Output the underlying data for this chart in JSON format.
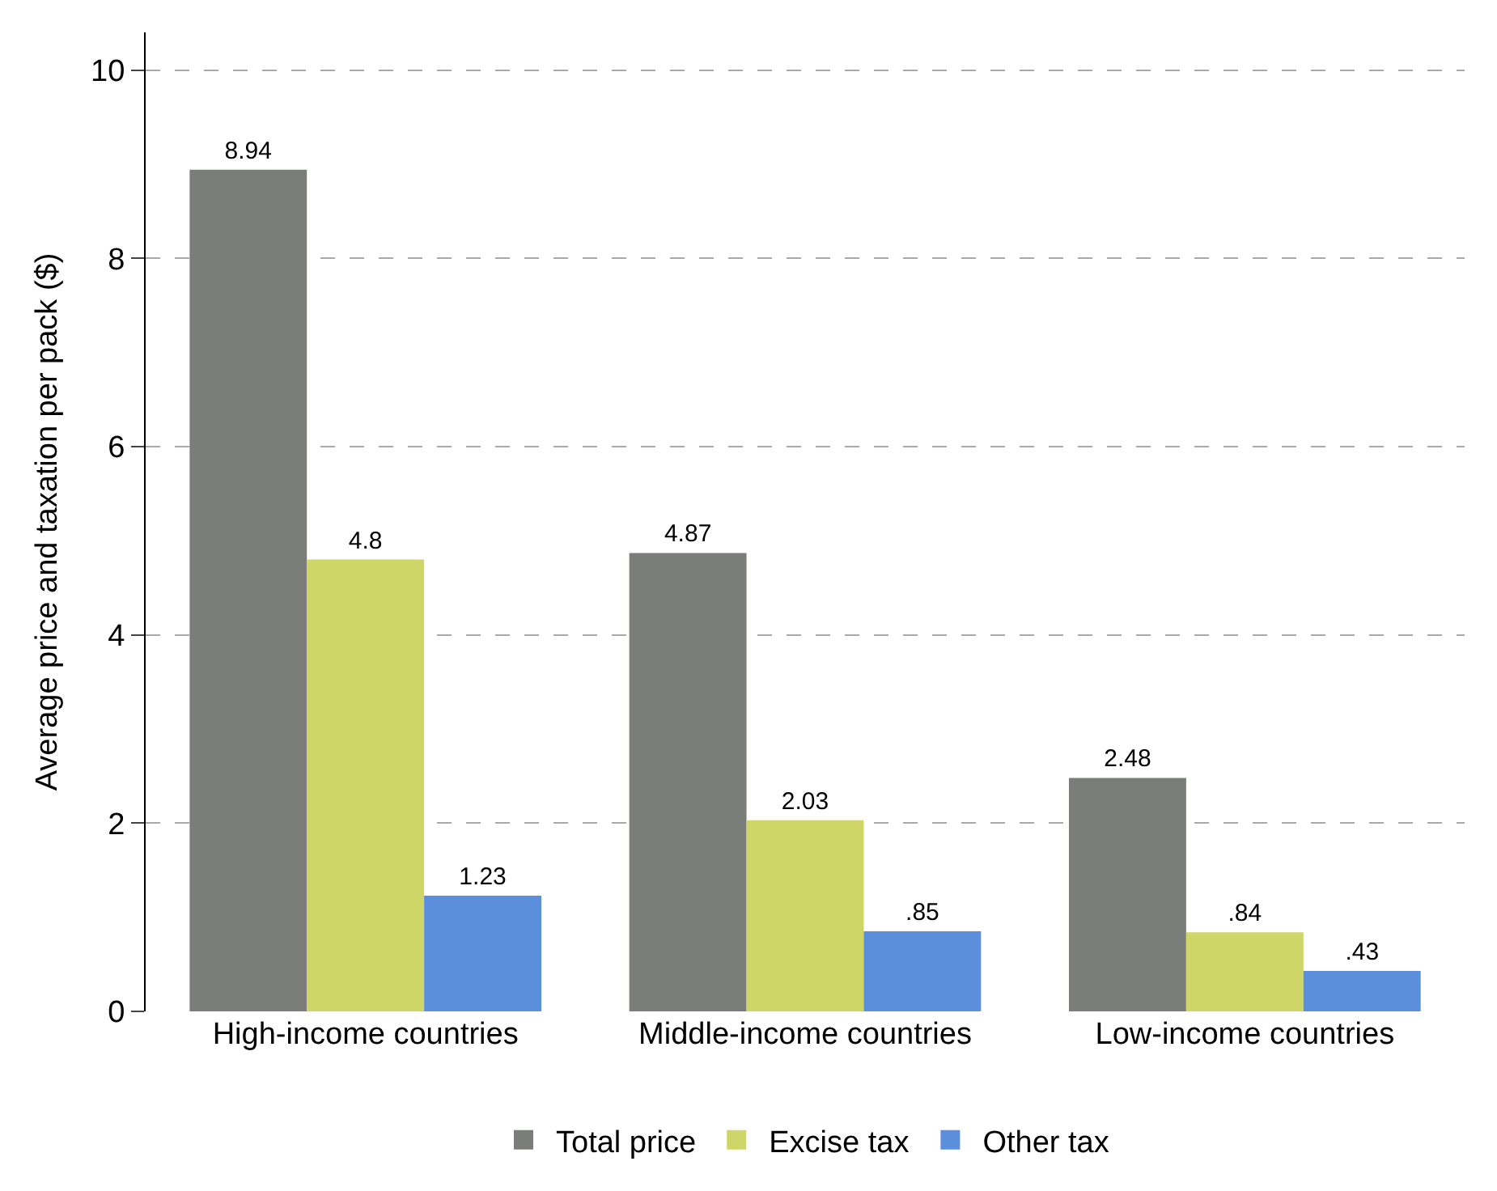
{
  "chart_data": {
    "type": "bar",
    "ylabel": "Average price and taxation per pack ($)",
    "categories": [
      "High-income countries",
      "Middle-income countries",
      "Low-income countries"
    ],
    "series": [
      {
        "name": "Total price",
        "color": "#7b7d7b",
        "values": [
          8.94,
          4.87,
          2.48
        ],
        "value_labels": [
          "8.94",
          "4.87",
          "2.48"
        ]
      },
      {
        "name": "Excise tax",
        "color": "#cdd667",
        "values": [
          4.8,
          2.03,
          0.84
        ],
        "value_labels": [
          "4.8",
          "2.03",
          ".84"
        ]
      },
      {
        "name": "Other tax",
        "color": "#5b8edb",
        "values": [
          1.23,
          0.85,
          0.43
        ],
        "value_labels": [
          "1.23",
          ".85",
          ".43"
        ]
      }
    ],
    "ylim": [
      0,
      10.4
    ],
    "yticks": [
      0,
      2,
      4,
      6,
      8,
      10
    ],
    "grid": "y",
    "legend": "bottom"
  }
}
